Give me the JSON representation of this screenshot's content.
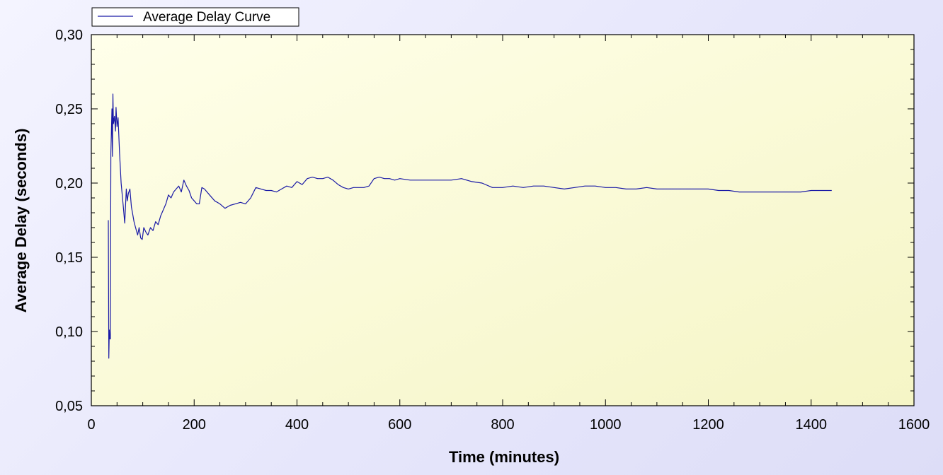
{
  "chart_data": {
    "type": "line",
    "title": "",
    "xlabel": "Time (minutes)",
    "ylabel": "Average Delay (seconds)",
    "xlim": [
      0,
      1600
    ],
    "ylim": [
      0.05,
      0.3
    ],
    "x_ticks": [
      {
        "value": 0,
        "label": "0"
      },
      {
        "value": 200,
        "label": "200"
      },
      {
        "value": 400,
        "label": "400"
      },
      {
        "value": 600,
        "label": "600"
      },
      {
        "value": 800,
        "label": "800"
      },
      {
        "value": 1000,
        "label": "1000"
      },
      {
        "value": 1200,
        "label": "1200"
      },
      {
        "value": 1400,
        "label": "1400"
      },
      {
        "value": 1600,
        "label": "1600"
      }
    ],
    "y_ticks": [
      {
        "value": 0.05,
        "label": "0,05"
      },
      {
        "value": 0.1,
        "label": "0,10"
      },
      {
        "value": 0.15,
        "label": "0,15"
      },
      {
        "value": 0.2,
        "label": "0,20"
      },
      {
        "value": 0.25,
        "label": "0,25"
      },
      {
        "value": 0.3,
        "label": "0,30"
      }
    ],
    "grid": false,
    "legend_position": "top-left",
    "colors": {
      "line": "#1a1aa6",
      "plot_bg_start": "#ffffea",
      "plot_bg_end": "#f5f5c6"
    },
    "series": [
      {
        "name": "Average Delay Curve",
        "x": [
          33,
          34,
          35,
          36,
          37,
          38,
          40,
          41,
          42,
          43,
          45,
          47,
          48,
          50,
          52,
          55,
          58,
          62,
          65,
          68,
          70,
          72,
          75,
          78,
          80,
          83,
          86,
          90,
          93,
          96,
          99,
          102,
          106,
          110,
          115,
          120,
          125,
          130,
          135,
          140,
          145,
          150,
          155,
          160,
          165,
          170,
          175,
          180,
          185,
          190,
          195,
          200,
          205,
          210,
          215,
          220,
          230,
          240,
          250,
          260,
          270,
          280,
          290,
          300,
          310,
          320,
          330,
          340,
          350,
          360,
          370,
          380,
          390,
          400,
          410,
          420,
          430,
          440,
          450,
          460,
          470,
          480,
          490,
          500,
          510,
          520,
          530,
          540,
          550,
          560,
          570,
          580,
          590,
          600,
          620,
          640,
          660,
          680,
          700,
          720,
          740,
          760,
          780,
          800,
          820,
          840,
          860,
          880,
          900,
          920,
          940,
          960,
          980,
          1000,
          1020,
          1040,
          1060,
          1080,
          1100,
          1120,
          1140,
          1160,
          1180,
          1200,
          1220,
          1240,
          1260,
          1280,
          1300,
          1320,
          1340,
          1360,
          1380,
          1400,
          1420,
          1440
        ],
        "values": [
          0.175,
          0.082,
          0.101,
          0.095,
          0.095,
          0.22,
          0.25,
          0.218,
          0.26,
          0.24,
          0.245,
          0.235,
          0.251,
          0.238,
          0.244,
          0.22,
          0.2,
          0.185,
          0.173,
          0.196,
          0.188,
          0.193,
          0.196,
          0.184,
          0.18,
          0.174,
          0.17,
          0.165,
          0.17,
          0.163,
          0.162,
          0.17,
          0.167,
          0.165,
          0.17,
          0.168,
          0.174,
          0.172,
          0.178,
          0.182,
          0.186,
          0.192,
          0.19,
          0.194,
          0.196,
          0.198,
          0.194,
          0.202,
          0.198,
          0.195,
          0.19,
          0.188,
          0.186,
          0.186,
          0.197,
          0.196,
          0.192,
          0.188,
          0.186,
          0.183,
          0.185,
          0.186,
          0.187,
          0.186,
          0.19,
          0.197,
          0.196,
          0.195,
          0.195,
          0.194,
          0.196,
          0.198,
          0.197,
          0.201,
          0.199,
          0.203,
          0.204,
          0.203,
          0.203,
          0.204,
          0.202,
          0.199,
          0.197,
          0.196,
          0.197,
          0.197,
          0.197,
          0.198,
          0.203,
          0.204,
          0.203,
          0.203,
          0.202,
          0.203,
          0.202,
          0.202,
          0.202,
          0.202,
          0.202,
          0.203,
          0.201,
          0.2,
          0.197,
          0.197,
          0.198,
          0.197,
          0.198,
          0.198,
          0.197,
          0.196,
          0.197,
          0.198,
          0.198,
          0.197,
          0.197,
          0.196,
          0.196,
          0.197,
          0.196,
          0.196,
          0.196,
          0.196,
          0.196,
          0.196,
          0.195,
          0.195,
          0.194,
          0.194,
          0.194,
          0.194,
          0.194,
          0.194,
          0.194,
          0.195,
          0.195,
          0.195
        ]
      }
    ]
  }
}
